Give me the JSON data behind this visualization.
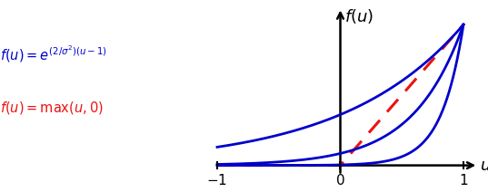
{
  "x_min": -1.0,
  "x_max": 1.0,
  "y_min": 0.0,
  "y_max": 1.0,
  "sigma_values": [
    0.6,
    0.9,
    1.4
  ],
  "relu_color": "#EE1111",
  "blue_color": "#0000CC",
  "relu_lw": 2.2,
  "blue_lw": 2.0,
  "background_color": "#FFFFFF",
  "axis_color": "#000000",
  "figsize": [
    5.37,
    2.12
  ],
  "dpi": 100
}
